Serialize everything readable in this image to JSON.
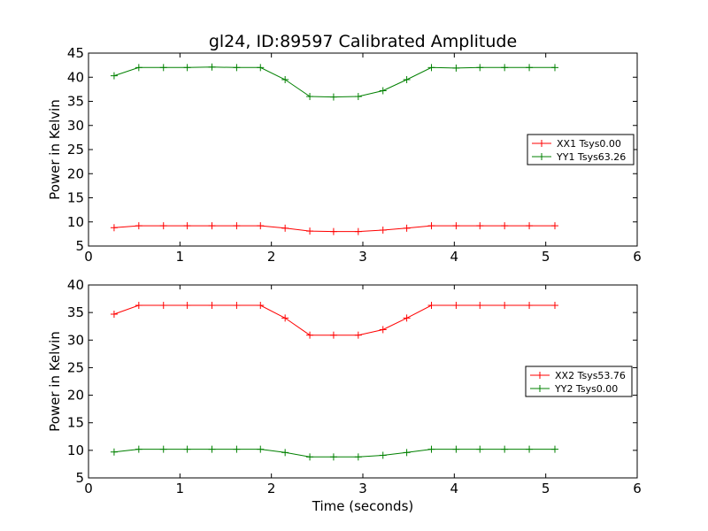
{
  "chart_data": [
    {
      "type": "line",
      "title": "gl24, ID:89597 Calibrated Amplitude",
      "xlabel": "",
      "ylabel": "Power in Kelvin",
      "xlim": [
        0,
        6
      ],
      "ylim": [
        5,
        45
      ],
      "xticks": [
        "0",
        "1",
        "2",
        "3",
        "4",
        "5",
        "6"
      ],
      "yticks": [
        "5",
        "10",
        "15",
        "20",
        "25",
        "30",
        "35",
        "40",
        "45"
      ],
      "legend_position": "right",
      "x": [
        0.28,
        0.55,
        0.82,
        1.08,
        1.35,
        1.62,
        1.88,
        2.15,
        2.42,
        2.68,
        2.95,
        3.22,
        3.48,
        3.75,
        4.02,
        4.28,
        4.55,
        4.82,
        5.1
      ],
      "series": [
        {
          "name": "XX1 Tsys0.00",
          "color": "#ff0000",
          "values": [
            8.8,
            9.2,
            9.2,
            9.2,
            9.2,
            9.2,
            9.2,
            8.7,
            8.1,
            8.0,
            8.0,
            8.3,
            8.7,
            9.2,
            9.2,
            9.2,
            9.2,
            9.2,
            9.2
          ]
        },
        {
          "name": "YY1 Tsys63.26",
          "color": "#008000",
          "values": [
            40.3,
            42.0,
            42.0,
            42.0,
            42.1,
            42.0,
            42.0,
            39.5,
            36.0,
            35.9,
            36.0,
            37.2,
            39.5,
            42.0,
            41.9,
            42.0,
            42.0,
            42.0,
            42.0
          ]
        }
      ]
    },
    {
      "type": "line",
      "title": "",
      "xlabel": "Time (seconds)",
      "ylabel": "Power in Kelvin",
      "xlim": [
        0,
        6
      ],
      "ylim": [
        5,
        40
      ],
      "xticks": [
        "0",
        "1",
        "2",
        "3",
        "4",
        "5",
        "6"
      ],
      "yticks": [
        "5",
        "10",
        "15",
        "20",
        "25",
        "30",
        "35",
        "40"
      ],
      "legend_position": "right",
      "x": [
        0.28,
        0.55,
        0.82,
        1.08,
        1.35,
        1.62,
        1.88,
        2.15,
        2.42,
        2.68,
        2.95,
        3.22,
        3.48,
        3.75,
        4.02,
        4.28,
        4.55,
        4.82,
        5.1
      ],
      "series": [
        {
          "name": "XX2 Tsys53.76",
          "color": "#ff0000",
          "values": [
            34.7,
            36.3,
            36.3,
            36.3,
            36.3,
            36.3,
            36.3,
            34.0,
            30.9,
            30.9,
            30.9,
            31.9,
            34.0,
            36.3,
            36.3,
            36.3,
            36.3,
            36.3,
            36.3
          ]
        },
        {
          "name": "YY2 Tsys0.00",
          "color": "#008000",
          "values": [
            9.7,
            10.2,
            10.2,
            10.2,
            10.2,
            10.2,
            10.2,
            9.6,
            8.8,
            8.8,
            8.8,
            9.1,
            9.6,
            10.2,
            10.2,
            10.2,
            10.2,
            10.2,
            10.2
          ]
        }
      ]
    }
  ]
}
